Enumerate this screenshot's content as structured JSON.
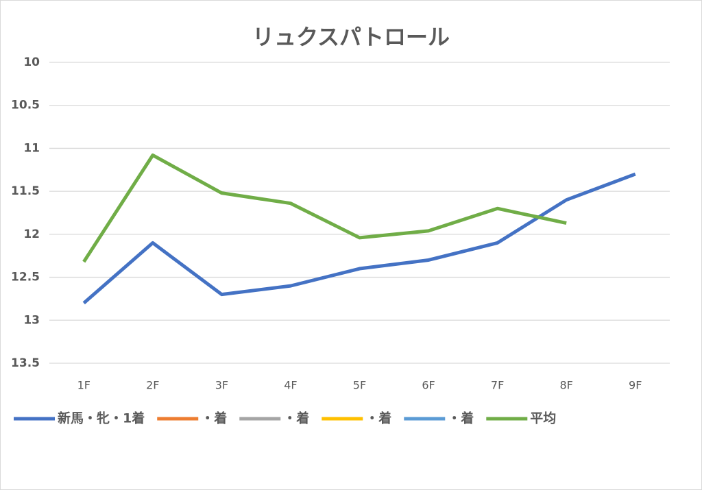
{
  "chart_data": {
    "type": "line",
    "title": "リュクスパトロール",
    "categories": [
      "1F",
      "2F",
      "3F",
      "4F",
      "5F",
      "6F",
      "7F",
      "8F",
      "9F"
    ],
    "series": [
      {
        "name": "新馬・牝・1着",
        "color": "#4472c4",
        "values": [
          12.8,
          12.1,
          12.7,
          12.6,
          12.4,
          12.3,
          12.1,
          11.6,
          11.3
        ]
      },
      {
        "name": "・着",
        "color": "#ed7d31",
        "values": [
          null,
          null,
          null,
          null,
          null,
          null,
          null,
          null,
          null
        ]
      },
      {
        "name": "・着",
        "color": "#a5a5a5",
        "values": [
          null,
          null,
          null,
          null,
          null,
          null,
          null,
          null,
          null
        ]
      },
      {
        "name": "・着",
        "color": "#ffc000",
        "values": [
          null,
          null,
          null,
          null,
          null,
          null,
          null,
          null,
          null
        ]
      },
      {
        "name": "・着",
        "color": "#5b9bd5",
        "values": [
          null,
          null,
          null,
          null,
          null,
          null,
          null,
          null,
          null
        ]
      },
      {
        "name": "平均",
        "color": "#70ad47",
        "values": [
          12.32,
          11.08,
          11.52,
          11.64,
          12.04,
          11.96,
          11.7,
          11.87,
          null
        ]
      }
    ],
    "ylim": [
      10,
      13.5
    ],
    "yticks": [
      10,
      10.5,
      11,
      11.5,
      12,
      12.5,
      13,
      13.5
    ],
    "y_inverted": true,
    "grid": true,
    "legend": "bottom"
  }
}
